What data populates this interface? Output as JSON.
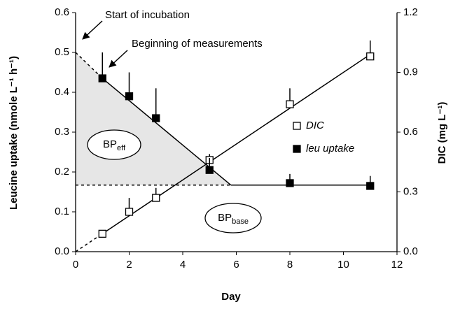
{
  "chart_data": {
    "type": "scatter",
    "x_label": "Day",
    "y_label": "Leucine uptake (nmole L⁻¹ h⁻¹)",
    "y2_label": "DIC (mg L⁻¹)",
    "xlim": [
      0,
      12
    ],
    "xticks": [
      0,
      2,
      4,
      6,
      8,
      10,
      12
    ],
    "ylim": [
      0,
      0.6
    ],
    "yticks": [
      {
        "value": 0,
        "label": "0.0"
      },
      0.1,
      0.2,
      0.3,
      0.4,
      0.5,
      0.6
    ],
    "y2lim": [
      0,
      1.2
    ],
    "y2ticks": [
      {
        "value": 0,
        "label": "0.0"
      },
      0.3,
      0.6,
      0.9,
      1.2
    ],
    "series": [
      {
        "name": "DIC",
        "axis": "y2",
        "marker": "open",
        "color": "#000000",
        "x": [
          1,
          2,
          3,
          5,
          8,
          11
        ],
        "values": [
          0.09,
          0.2,
          0.27,
          0.46,
          0.74,
          0.98
        ],
        "errors": [
          0,
          0.07,
          0.05,
          0.03,
          0.08,
          0.08
        ]
      },
      {
        "name": "leu uptake",
        "axis": "y",
        "marker": "filled",
        "color": "#000000",
        "x": [
          1,
          2,
          3,
          5,
          8,
          11
        ],
        "values": [
          0.435,
          0.39,
          0.335,
          0.205,
          0.172,
          0.165
        ],
        "errors": [
          0.065,
          0.06,
          0.075,
          0.03,
          0.023,
          0.025
        ]
      }
    ],
    "fit_lines": [
      {
        "axis": "y",
        "x": [
          0,
          1,
          5.8,
          11
        ],
        "values": [
          0.5,
          0.435,
          0.167,
          0.167
        ],
        "styles": [
          "dashed",
          "solid",
          "solid"
        ]
      },
      {
        "axis": "y2",
        "x": [
          0,
          1,
          11
        ],
        "values": [
          0,
          0.09,
          0.99
        ],
        "styles": [
          "dashed",
          "solid"
        ]
      }
    ],
    "baseline": {
      "x": [
        0,
        5.8
      ],
      "values": [
        0.167,
        0.167
      ]
    },
    "shade_color": "#e6e6e6",
    "annotations": [
      {
        "text": "Start of incubation"
      },
      {
        "text": "Beginning of measurements"
      },
      {
        "text": "BP",
        "sub": "eff"
      },
      {
        "text": "BP",
        "sub": "base"
      }
    ]
  }
}
